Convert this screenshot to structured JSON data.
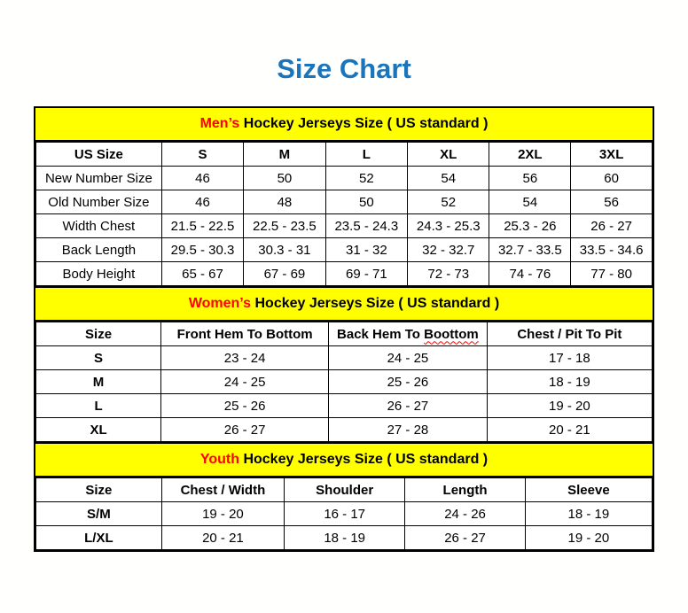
{
  "page": {
    "title": "Size Chart"
  },
  "colors": {
    "title_blue": "#1b75bc",
    "banner_yellow": "#ffff00",
    "highlight_red": "#ff0000",
    "border_black": "#000000"
  },
  "sections": [
    {
      "id": "mens",
      "banner": {
        "highlight": "Men’s",
        "rest": " Hockey Jerseys Size ( US standard )"
      },
      "row_label_bold": false,
      "columns": [
        "US Size",
        "S",
        "M",
        "L",
        "XL",
        "2XL",
        "3XL"
      ],
      "rows": [
        [
          "New Number Size",
          "46",
          "50",
          "52",
          "54",
          "56",
          "60"
        ],
        [
          "Old Number Size",
          "46",
          "48",
          "50",
          "52",
          "54",
          "56"
        ],
        [
          "Width Chest",
          "21.5 - 22.5",
          "22.5 - 23.5",
          "23.5 - 24.3",
          "24.3 - 25.3",
          "25.3 - 26",
          "26 - 27"
        ],
        [
          "Back Length",
          "29.5 - 30.3",
          "30.3 - 31",
          "31 - 32",
          "32 - 32.7",
          "32.7 - 33.5",
          "33.5 - 34.6"
        ],
        [
          "Body Height",
          "65 - 67",
          "67 - 69",
          "69 - 71",
          "72 - 73",
          "74 - 76",
          "77 - 80"
        ]
      ]
    },
    {
      "id": "womens",
      "banner": {
        "highlight": "Women’s",
        "rest": " Hockey Jerseys Size ( US standard )"
      },
      "row_label_bold": true,
      "columns": [
        "Size",
        "Front Hem To Bottom",
        {
          "parts": [
            {
              "text": "Back Hem To "
            },
            {
              "text": "Boottom",
              "wavy": true
            }
          ]
        },
        "Chest / Pit To Pit"
      ],
      "rows": [
        [
          "S",
          "23 - 24",
          "24 - 25",
          "17 - 18"
        ],
        [
          "M",
          "24 - 25",
          "25 - 26",
          "18 - 19"
        ],
        [
          "L",
          "25 - 26",
          "26 - 27",
          "19 - 20"
        ],
        [
          "XL",
          "26 - 27",
          "27 - 28",
          "20 - 21"
        ]
      ]
    },
    {
      "id": "youth",
      "banner": {
        "highlight": "Youth",
        "rest": " Hockey Jerseys Size ( US standard )"
      },
      "row_label_bold": true,
      "columns": [
        "Size",
        "Chest / Width",
        "Shoulder",
        "Length",
        "Sleeve"
      ],
      "rows": [
        [
          "S/M",
          "19 - 20",
          "16 - 17",
          "24 - 26",
          "18 - 19"
        ],
        [
          "L/XL",
          "20 - 21",
          "18 - 19",
          "26 - 27",
          "19 - 20"
        ]
      ]
    }
  ]
}
